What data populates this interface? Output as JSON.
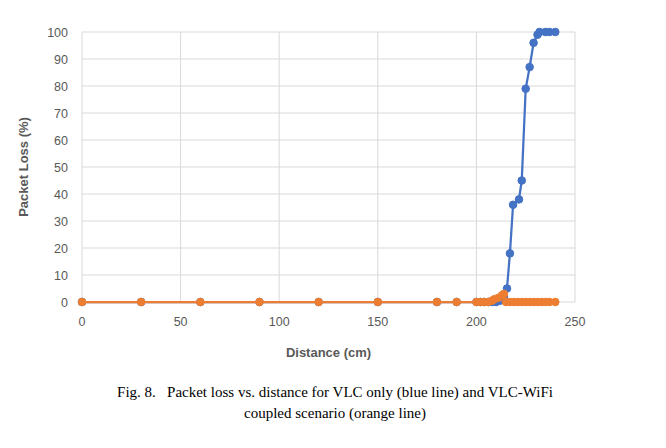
{
  "chart_data": {
    "type": "line",
    "x_label": "Distance (cm)",
    "y_label": "Packet Loss (%)",
    "caption": [
      "Fig. 8.   Packet loss vs. distance for VLC only (blue line) and VLC-WiFi",
      "coupled scenario (orange line)"
    ],
    "xlim": [
      0,
      250
    ],
    "xticks": [
      0,
      50,
      100,
      150,
      200,
      250
    ],
    "ylim": [
      0,
      100
    ],
    "yticks": [
      0,
      10,
      20,
      30,
      40,
      50,
      60,
      70,
      80,
      90,
      100
    ],
    "grid": true,
    "marker": "circle",
    "series": [
      {
        "name": "VLC only",
        "color": "#4472c4",
        "x": [
          0,
          30,
          60,
          90,
          120,
          150,
          180,
          190,
          200,
          202,
          204,
          206,
          208,
          210,
          212,
          214,
          215.5,
          217,
          218.6,
          221.6,
          223,
          225,
          227,
          229,
          231,
          232,
          235,
          237,
          240
        ],
        "values": [
          0,
          0,
          0,
          0,
          0,
          0,
          0,
          0,
          0,
          0,
          0,
          0,
          0,
          0,
          0.5,
          2,
          5,
          18,
          36,
          38,
          45,
          79,
          87,
          96,
          99,
          100,
          100,
          100,
          100
        ]
      },
      {
        "name": "VLC-WiFi coupled",
        "color": "#ed7d31",
        "x": [
          0,
          30,
          60,
          90,
          120,
          150,
          180,
          190,
          200,
          202,
          204,
          206,
          208,
          209,
          211,
          213,
          214,
          215,
          217,
          219,
          221,
          223,
          225,
          227,
          229,
          231,
          233,
          235,
          237,
          240
        ],
        "values": [
          0,
          0,
          0,
          0,
          0,
          0,
          0,
          0,
          0,
          0,
          0,
          0,
          0.5,
          1,
          1.5,
          2.5,
          3,
          0,
          0,
          0,
          0,
          0,
          0,
          0,
          0,
          0,
          0,
          0,
          0,
          0
        ]
      }
    ]
  }
}
